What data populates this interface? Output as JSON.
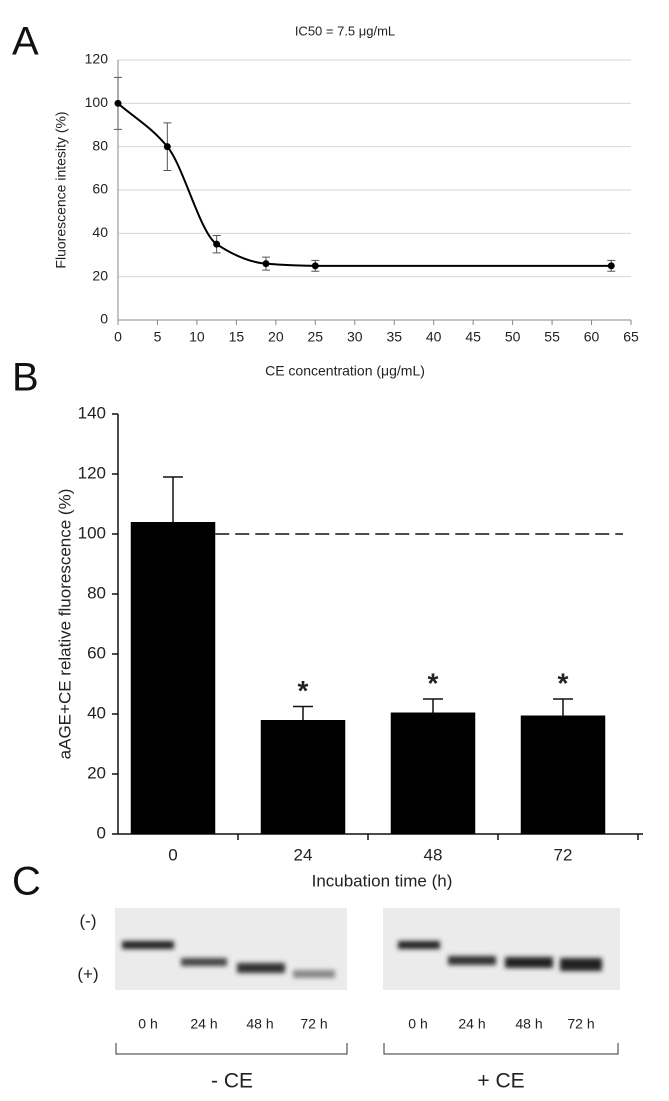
{
  "panel_labels": [
    "A",
    "B",
    "C"
  ],
  "chart_data": [
    {
      "type": "line",
      "title": "IC50 = 7.5 μg/mL",
      "x_label": "CE concentration (μg/mL)",
      "y_label": "Fluorescence intesity (%)",
      "x": [
        0,
        6.25,
        12.5,
        18.75,
        25,
        62.5
      ],
      "values": [
        100,
        80,
        35,
        26,
        25,
        25
      ],
      "errors": [
        12,
        11,
        4,
        3,
        2.5,
        2.5
      ],
      "color": "#000000",
      "xlim": [
        0,
        65
      ],
      "xticks": [
        0,
        5,
        10,
        15,
        20,
        25,
        30,
        35,
        40,
        45,
        50,
        55,
        60,
        65
      ],
      "ylim": [
        0,
        120
      ],
      "yticks": [
        0,
        20,
        40,
        60,
        80,
        100,
        120
      ],
      "grid": true
    },
    {
      "type": "bar",
      "x_label": "Incubation time (h)",
      "y_label": "aAGE+CE relative fluorescence (%)",
      "categories": [
        "0",
        "24",
        "48",
        "72"
      ],
      "values": [
        104,
        38,
        40.5,
        39.5
      ],
      "errors": [
        15,
        4.5,
        4.5,
        5.5
      ],
      "significance": [
        null,
        "*",
        "*",
        "*"
      ],
      "reference_line": 100,
      "color": "#000000",
      "ylim": [
        0,
        140
      ],
      "yticks": [
        0,
        20,
        40,
        60,
        80,
        100,
        120,
        140
      ],
      "grid": false
    }
  ],
  "gel": {
    "polarity": [
      "(-)",
      "(+)"
    ],
    "groups": [
      {
        "name": "- CE",
        "lanes": [
          "0 h",
          "24 h",
          "48 h",
          "72 h"
        ]
      },
      {
        "name": "+ CE",
        "lanes": [
          "0 h",
          "24 h",
          "48 h",
          "72 h"
        ]
      }
    ]
  }
}
